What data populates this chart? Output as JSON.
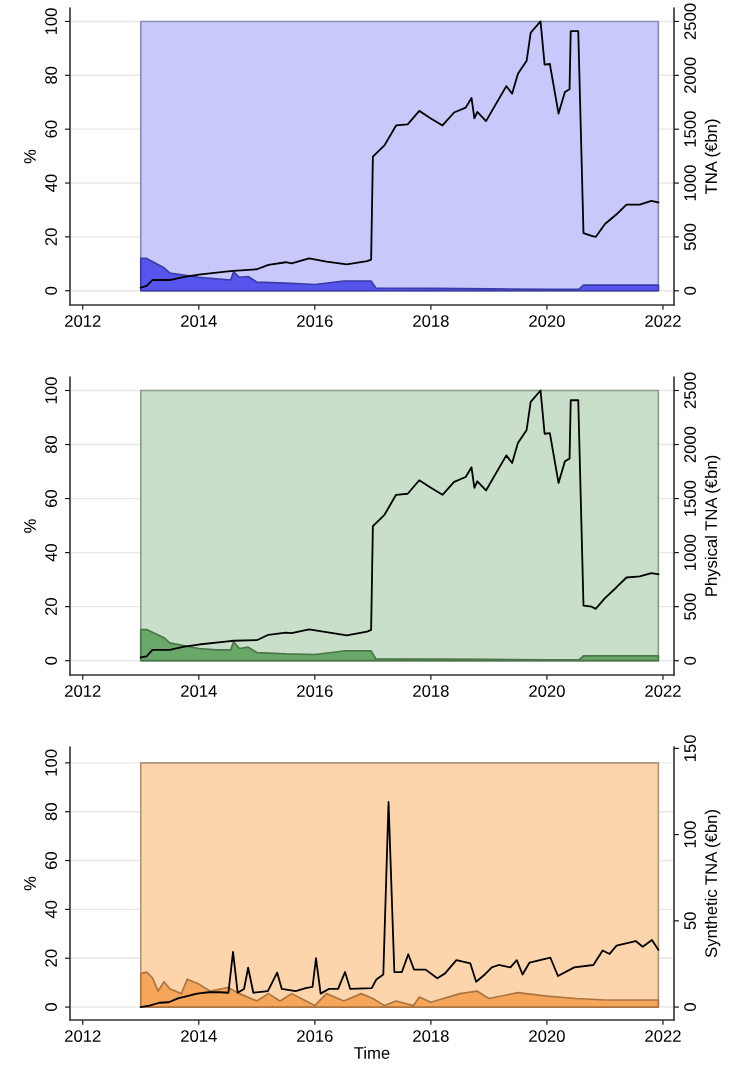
{
  "chart_data": [
    {
      "type": "area",
      "ylabel": "%",
      "y2label": "TNA (€bn)",
      "xlim": [
        2011.78,
        2022.19
      ],
      "xticks": [
        2012,
        2014,
        2016,
        2018,
        2020,
        2022
      ],
      "ylim": [
        -5.3,
        105
      ],
      "yticks": [
        0,
        20,
        40,
        60,
        80,
        100
      ],
      "y2lim": [
        -132,
        2625
      ],
      "y2ticks": [
        0,
        500,
        1000,
        1500,
        2000,
        2500
      ],
      "grid": "y",
      "series": [
        {
          "color": "#c8c8fa",
          "x": [
            2013.0,
            2021.92
          ],
          "values": [
            100,
            100
          ]
        },
        {
          "color": "#5555ee",
          "x": [
            2013.0,
            2013.1,
            2013.4,
            2013.5,
            2014.0,
            2014.3,
            2014.55,
            2014.6,
            2014.7,
            2014.85,
            2015.0,
            2015.5,
            2016.0,
            2016.5,
            2016.97,
            2017.05,
            2018.0,
            2019.0,
            2020.0,
            2020.55,
            2020.63,
            2021.0,
            2021.92
          ],
          "values": [
            12,
            12,
            8.5,
            6.6,
            5,
            4.4,
            4,
            7,
            5,
            5.3,
            3.2,
            2.8,
            2.3,
            3.6,
            3.6,
            1,
            0.9,
            0.7,
            0.5,
            0.5,
            2.1,
            2.1,
            2.1
          ]
        },
        {
          "type": "line",
          "axis": "y2",
          "color": "#000000",
          "x": [
            2013.0,
            2013.1,
            2013.2,
            2013.5,
            2013.75,
            2014.0,
            2014.5,
            2014.6,
            2015.0,
            2015.2,
            2015.5,
            2015.6,
            2015.9,
            2016.2,
            2016.55,
            2016.9,
            2016.97,
            2017.0,
            2017.2,
            2017.4,
            2017.6,
            2017.8,
            2018.0,
            2018.2,
            2018.4,
            2018.6,
            2018.7,
            2018.75,
            2018.8,
            2018.95,
            2019.3,
            2019.4,
            2019.5,
            2019.65,
            2019.72,
            2019.89,
            2019.96,
            2020.05,
            2020.2,
            2020.31,
            2020.39,
            2020.41,
            2020.54,
            2020.63,
            2020.77,
            2020.84,
            2021.0,
            2021.2,
            2021.37,
            2021.6,
            2021.8,
            2021.92
          ],
          "values": [
            30,
            45,
            100,
            100,
            130,
            150,
            180,
            185,
            200,
            240,
            265,
            255,
            300,
            270,
            245,
            275,
            290,
            1245,
            1350,
            1535,
            1545,
            1670,
            1600,
            1535,
            1655,
            1700,
            1790,
            1600,
            1660,
            1575,
            1900,
            1830,
            2015,
            2135,
            2395,
            2500,
            2100,
            2105,
            1645,
            1845,
            1870,
            2410,
            2410,
            535,
            510,
            500,
            620,
            710,
            800,
            800,
            835,
            820
          ]
        }
      ]
    },
    {
      "type": "area",
      "ylabel": "%",
      "y2label": "Physical TNA (€bn)",
      "xlim": [
        2011.78,
        2022.19
      ],
      "xticks": [
        2012,
        2014,
        2016,
        2018,
        2020,
        2022
      ],
      "ylim": [
        -5.3,
        105
      ],
      "yticks": [
        0,
        20,
        40,
        60,
        80,
        100
      ],
      "y2lim": [
        -132,
        2625
      ],
      "y2ticks": [
        0,
        500,
        1000,
        1500,
        2000,
        2500
      ],
      "grid": "y",
      "series": [
        {
          "color": "#c9dfc9",
          "x": [
            2013.0,
            2021.92
          ],
          "values": [
            100,
            100
          ]
        },
        {
          "color": "#6aa86a",
          "x": [
            2013.0,
            2013.1,
            2013.4,
            2013.5,
            2014.0,
            2014.3,
            2014.55,
            2014.6,
            2014.7,
            2014.85,
            2015.0,
            2015.5,
            2016.0,
            2016.5,
            2016.97,
            2017.05,
            2018.0,
            2019.0,
            2020.0,
            2020.55,
            2020.63,
            2021.0,
            2021.92
          ],
          "values": [
            11.5,
            11.5,
            8.5,
            6.6,
            4.5,
            4,
            4,
            7,
            4.5,
            5,
            3,
            2.5,
            2.3,
            3.6,
            3.6,
            0.7,
            0.6,
            0.5,
            0.3,
            0.3,
            1.8,
            1.8,
            1.8
          ]
        },
        {
          "type": "line",
          "axis": "y2",
          "color": "#000000",
          "x": [
            2013.0,
            2013.1,
            2013.2,
            2013.5,
            2013.75,
            2014.0,
            2014.5,
            2014.6,
            2015.0,
            2015.2,
            2015.5,
            2015.6,
            2015.9,
            2016.2,
            2016.55,
            2016.9,
            2016.97,
            2017.0,
            2017.2,
            2017.4,
            2017.6,
            2017.8,
            2018.0,
            2018.2,
            2018.4,
            2018.6,
            2018.7,
            2018.75,
            2018.8,
            2018.95,
            2019.3,
            2019.4,
            2019.5,
            2019.65,
            2019.72,
            2019.89,
            2019.96,
            2020.05,
            2020.2,
            2020.31,
            2020.39,
            2020.41,
            2020.54,
            2020.63,
            2020.77,
            2020.84,
            2021.0,
            2021.2,
            2021.37,
            2021.6,
            2021.8,
            2021.92
          ],
          "values": [
            30,
            40,
            100,
            100,
            130,
            150,
            180,
            185,
            190,
            240,
            260,
            255,
            290,
            265,
            235,
            270,
            285,
            1245,
            1350,
            1535,
            1545,
            1670,
            1600,
            1535,
            1655,
            1700,
            1790,
            1600,
            1660,
            1575,
            1900,
            1830,
            2015,
            2135,
            2395,
            2500,
            2100,
            2105,
            1645,
            1845,
            1870,
            2410,
            2410,
            510,
            500,
            480,
            580,
            680,
            770,
            780,
            810,
            800
          ]
        }
      ]
    },
    {
      "type": "area",
      "ylabel": "%",
      "y2label": "Synthetic TNA (€bn)",
      "xlabel": "Time",
      "xlim": [
        2011.78,
        2022.19
      ],
      "xticks": [
        2012,
        2014,
        2016,
        2018,
        2020,
        2022
      ],
      "ylim": [
        -5.3,
        106.5
      ],
      "yticks": [
        0,
        20,
        40,
        60,
        80,
        100
      ],
      "y2lim": [
        -7.5,
        150.8
      ],
      "y2ticks": [
        0,
        50,
        100,
        150
      ],
      "grid": "y",
      "series": [
        {
          "color": "#fdd5ac",
          "x": [
            2013.0,
            2021.92
          ],
          "values": [
            100,
            100
          ]
        },
        {
          "color": "#f5a65b",
          "x": [
            2013.0,
            2013.1,
            2013.2,
            2013.3,
            2013.4,
            2013.5,
            2013.7,
            2013.8,
            2014.0,
            2014.2,
            2014.5,
            2014.7,
            2015.0,
            2015.2,
            2015.4,
            2015.6,
            2016.0,
            2016.2,
            2016.5,
            2016.8,
            2017.0,
            2017.2,
            2017.4,
            2017.7,
            2017.8,
            2018.0,
            2018.5,
            2018.8,
            2019.0,
            2019.5,
            2020.0,
            2020.5,
            2021.0,
            2021.92
          ],
          "values": [
            13.7,
            14.3,
            12,
            6.5,
            10.4,
            7.5,
            5.5,
            11.4,
            9.4,
            6.5,
            8,
            5.5,
            2.5,
            5.5,
            2.5,
            5.5,
            0.6,
            5.5,
            2.5,
            5.5,
            3.5,
            0.6,
            2.5,
            0.6,
            4.1,
            2,
            5.5,
            6.5,
            3.5,
            5.9,
            4.5,
            3.5,
            2.9,
            2.9
          ]
        },
        {
          "type": "line",
          "axis": "y2",
          "color": "#000000",
          "x": [
            2013.0,
            2013.15,
            2013.32,
            2013.48,
            2013.64,
            2013.8,
            2013.97,
            2014.17,
            2014.37,
            2014.51,
            2014.59,
            2014.67,
            2014.78,
            2014.85,
            2014.94,
            2015.19,
            2015.35,
            2015.43,
            2015.67,
            2015.84,
            2015.96,
            2016.02,
            2016.1,
            2016.24,
            2016.4,
            2016.52,
            2016.61,
            2016.98,
            2017.06,
            2017.18,
            2017.27,
            2017.37,
            2017.5,
            2017.61,
            2017.71,
            2017.91,
            2018.11,
            2018.24,
            2018.44,
            2018.68,
            2018.78,
            2018.93,
            2019.05,
            2019.17,
            2019.37,
            2019.48,
            2019.58,
            2019.7,
            2020.06,
            2020.19,
            2020.47,
            2020.8,
            2020.88,
            2020.96,
            2021.08,
            2021.2,
            2021.53,
            2021.65,
            2021.81,
            2021.92
          ],
          "values": [
            0,
            0.8,
            2.5,
            2.8,
            5,
            6.4,
            7.8,
            8.6,
            8.6,
            8.3,
            32,
            8.3,
            10.5,
            22.8,
            8.3,
            9.2,
            20,
            10.5,
            9.2,
            11,
            11.7,
            28.3,
            7.8,
            10.5,
            10.5,
            20.3,
            10.5,
            11,
            16,
            18.9,
            118.9,
            20.3,
            20.3,
            30.6,
            21.7,
            21.7,
            16.7,
            19.4,
            27.2,
            25.3,
            14.7,
            18.9,
            23,
            24.4,
            23,
            27.2,
            18.9,
            25.8,
            28.6,
            18,
            23,
            24.4,
            28.6,
            32.8,
            30.8,
            35.6,
            38.3,
            35,
            38.9,
            33.3
          ]
        }
      ]
    }
  ]
}
